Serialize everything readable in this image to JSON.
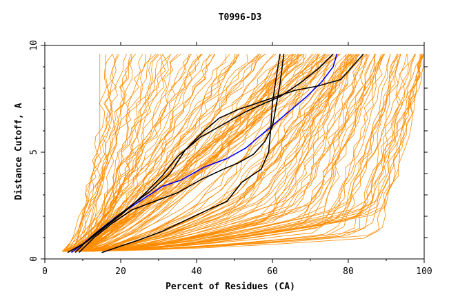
{
  "chart_data": {
    "type": "line",
    "title": "T0996-D3",
    "xlabel": "Percent of Residues (CA)",
    "ylabel": "Distance Cutoff, A",
    "xlim": [
      0,
      100
    ],
    "ylim": [
      0,
      10
    ],
    "xticks": [
      0,
      20,
      40,
      60,
      80,
      100
    ],
    "yticks": [
      0,
      5,
      10
    ],
    "legend": "none",
    "background_colors": {
      "bundle": "#ff8c00",
      "highlight_black": "#000000",
      "highlight_blue": "#0000ff"
    },
    "background_bundle_count": 150,
    "series": [
      {
        "color": "#0000ff",
        "x": [
          7,
          10,
          14,
          19,
          25,
          31,
          36,
          42,
          48,
          53,
          57,
          61,
          65,
          69,
          73,
          76,
          77
        ],
        "y": [
          0.3,
          0.7,
          1.3,
          2.0,
          2.7,
          3.4,
          3.7,
          4.3,
          4.7,
          5.2,
          5.8,
          6.4,
          7.0,
          7.6,
          8.3,
          9.0,
          9.6
        ]
      },
      {
        "color": "#000000",
        "x": [
          6,
          11,
          16,
          21,
          26,
          31,
          35,
          41,
          47,
          53,
          58,
          62,
          67,
          72,
          76
        ],
        "y": [
          0.3,
          0.8,
          1.5,
          2.2,
          3.0,
          3.9,
          4.8,
          5.7,
          6.3,
          6.9,
          7.3,
          7.6,
          8.2,
          8.9,
          9.6
        ]
      },
      {
        "color": "#000000",
        "x": [
          8,
          12,
          17,
          22,
          28,
          33,
          37,
          42,
          46,
          51,
          56,
          61,
          66,
          72,
          78,
          84
        ],
        "y": [
          0.3,
          1.0,
          1.7,
          2.4,
          3.2,
          4.0,
          5.1,
          6.0,
          6.6,
          7.0,
          7.3,
          7.6,
          7.9,
          8.1,
          8.4,
          9.6
        ]
      },
      {
        "color": "#000000",
        "x": [
          9,
          13,
          18,
          23,
          29,
          35,
          41,
          47,
          51,
          55,
          58,
          60,
          61,
          62,
          63
        ],
        "y": [
          0.3,
          1.0,
          1.7,
          2.3,
          2.7,
          3.1,
          3.7,
          4.2,
          4.5,
          4.9,
          5.5,
          6.2,
          7.2,
          8.2,
          9.6
        ]
      },
      {
        "color": "#000000",
        "x": [
          15,
          20,
          25,
          31,
          37,
          43,
          48,
          52,
          57,
          59,
          59.5,
          60,
          61,
          62
        ],
        "y": [
          0.3,
          0.6,
          0.9,
          1.3,
          1.8,
          2.3,
          2.7,
          3.6,
          4.2,
          5.0,
          6.0,
          7.3,
          8.5,
          9.6
        ]
      }
    ]
  }
}
